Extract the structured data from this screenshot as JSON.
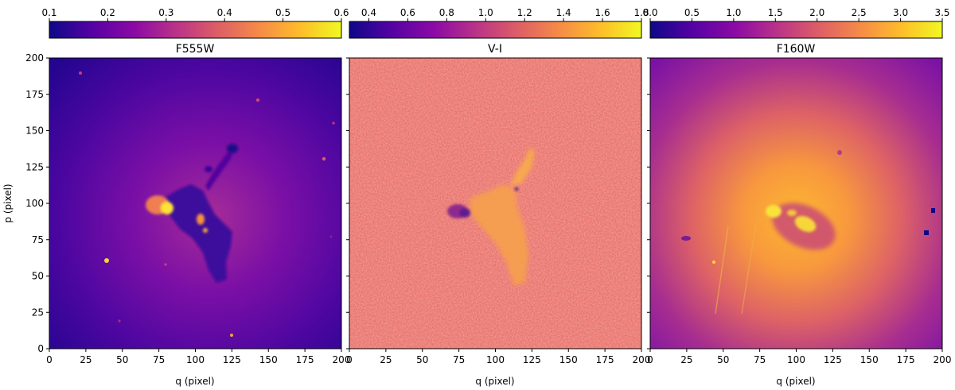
{
  "palette": {
    "stops": [
      "#0d0887",
      "#5302a3",
      "#8b0aa5",
      "#b83289",
      "#db5c68",
      "#f48849",
      "#febd2a",
      "#f0f921"
    ]
  },
  "panels": [
    {
      "id": "f555w",
      "title": "F555W",
      "colorbar": {
        "min": 0.1,
        "max": 0.6,
        "ticks": [
          "0.1",
          "0.2",
          "0.3",
          "0.4",
          "0.5",
          "0.6"
        ],
        "tick_values": [
          0.1,
          0.2,
          0.3,
          0.4,
          0.5,
          0.6
        ]
      },
      "xlabel": "q (pixel)",
      "ylabel": "p (pixel)",
      "xticks": [
        "0",
        "25",
        "50",
        "75",
        "100",
        "125",
        "150",
        "175",
        "200"
      ],
      "yticks": [
        "0",
        "25",
        "50",
        "75",
        "100",
        "125",
        "150",
        "175",
        "200"
      ],
      "tick_values": [
        0,
        25,
        50,
        75,
        100,
        125,
        150,
        175,
        200
      ],
      "range": [
        0,
        200
      ]
    },
    {
      "id": "vi",
      "title": "V-I",
      "colorbar": {
        "min": 0.3,
        "max": 1.8,
        "ticks": [
          "0.4",
          "0.6",
          "0.8",
          "1.0",
          "1.2",
          "1.4",
          "1.6",
          "1.8"
        ],
        "tick_values": [
          0.4,
          0.6,
          0.8,
          1.0,
          1.2,
          1.4,
          1.6,
          1.8
        ]
      },
      "xlabel": "q (pixel)",
      "xticks": [
        "0",
        "25",
        "50",
        "75",
        "100",
        "125",
        "150",
        "175",
        "200"
      ],
      "tick_values": [
        0,
        25,
        50,
        75,
        100,
        125,
        150,
        175,
        200
      ],
      "range": [
        0,
        200
      ]
    },
    {
      "id": "f160w",
      "title": "F160W",
      "colorbar": {
        "min": 0.0,
        "max": 3.5,
        "ticks": [
          "0.0",
          "0.5",
          "1.0",
          "1.5",
          "2.0",
          "2.5",
          "3.0",
          "3.5"
        ],
        "tick_values": [
          0.0,
          0.5,
          1.0,
          1.5,
          2.0,
          2.5,
          3.0,
          3.5
        ]
      },
      "xlabel": "q (pixel)",
      "xticks": [
        "0",
        "25",
        "50",
        "75",
        "100",
        "125",
        "150",
        "175",
        "200"
      ],
      "tick_values": [
        0,
        25,
        50,
        75,
        100,
        125,
        150,
        175,
        200
      ],
      "range": [
        0,
        200
      ]
    }
  ]
}
